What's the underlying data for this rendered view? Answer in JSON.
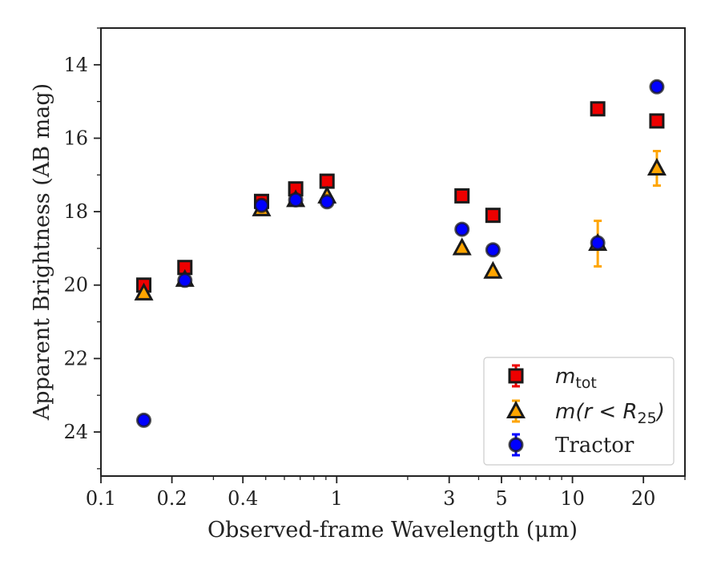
{
  "chart_data": {
    "type": "scatter",
    "xlabel": "Observed-frame Wavelength (μm)",
    "ylabel": "Apparent Brightness (AB mag)",
    "xscale": "log",
    "xlim": [
      0.1,
      30
    ],
    "ylim": [
      25.2,
      13
    ],
    "y_inverted": true,
    "grid": false,
    "legend_position": "lower-right",
    "xticks": [
      0.1,
      0.2,
      0.4,
      1,
      3,
      5,
      10,
      20
    ],
    "xtick_labels": [
      "0.1",
      "0.2",
      "0.4",
      "1",
      "3",
      "5",
      "10",
      "20"
    ],
    "yticks": [
      14,
      16,
      18,
      20,
      22,
      24
    ],
    "ytick_labels": [
      "14",
      "16",
      "18",
      "20",
      "22",
      "24"
    ],
    "series": [
      {
        "name": "m_tot",
        "legend_label": "m",
        "legend_sub": "tot",
        "marker": "square",
        "color": "#ee0000",
        "errorbar_color": "#ee0000",
        "points": [
          {
            "x": 0.152,
            "y": 20.0,
            "yerr": 0.03
          },
          {
            "x": 0.227,
            "y": 19.52,
            "yerr": 0.03
          },
          {
            "x": 0.48,
            "y": 17.72,
            "yerr": 0.03
          },
          {
            "x": 0.67,
            "y": 17.38,
            "yerr": 0.03
          },
          {
            "x": 0.91,
            "y": 17.17,
            "yerr": 0.03
          },
          {
            "x": 3.4,
            "y": 17.57,
            "yerr": 0.03
          },
          {
            "x": 4.6,
            "y": 18.1,
            "yerr": 0.03
          },
          {
            "x": 12.8,
            "y": 15.2,
            "yerr": 0.03
          },
          {
            "x": 22.8,
            "y": 15.53,
            "yerr": 0.03
          }
        ]
      },
      {
        "name": "m(r < R_25)",
        "legend_label": "m(r < R",
        "legend_sub": "25",
        "legend_tail": ")",
        "marker": "triangle",
        "color": "#ffa500",
        "errorbar_color": "#ffa500",
        "points": [
          {
            "x": 0.152,
            "y": 20.22,
            "yerr": 0.03
          },
          {
            "x": 0.227,
            "y": 19.85,
            "yerr": 0.03
          },
          {
            "x": 0.48,
            "y": 17.93,
            "yerr": 0.03
          },
          {
            "x": 0.67,
            "y": 17.68,
            "yerr": 0.03
          },
          {
            "x": 0.91,
            "y": 17.58,
            "yerr": 0.03
          },
          {
            "x": 3.4,
            "y": 18.99,
            "yerr": 0.03
          },
          {
            "x": 4.6,
            "y": 19.63,
            "yerr": 0.03
          },
          {
            "x": 12.8,
            "y": 18.87,
            "yerr": 0.62
          },
          {
            "x": 22.8,
            "y": 16.82,
            "yerr": 0.47
          }
        ]
      },
      {
        "name": "Tractor",
        "legend_label": "Tractor",
        "marker": "circle",
        "color": "#0000ff",
        "errorbar_color": "#0000ff",
        "points": [
          {
            "x": 0.152,
            "y": 23.68,
            "yerr": 0.03
          },
          {
            "x": 0.227,
            "y": 19.87,
            "yerr": 0.03
          },
          {
            "x": 0.48,
            "y": 17.83,
            "yerr": 0.03
          },
          {
            "x": 0.67,
            "y": 17.68,
            "yerr": 0.03
          },
          {
            "x": 0.91,
            "y": 17.73,
            "yerr": 0.03
          },
          {
            "x": 3.4,
            "y": 18.48,
            "yerr": 0.03
          },
          {
            "x": 4.6,
            "y": 19.04,
            "yerr": 0.03
          },
          {
            "x": 12.8,
            "y": 18.85,
            "yerr": 0.03
          },
          {
            "x": 22.8,
            "y": 14.6,
            "yerr": 0.03
          }
        ]
      }
    ]
  }
}
